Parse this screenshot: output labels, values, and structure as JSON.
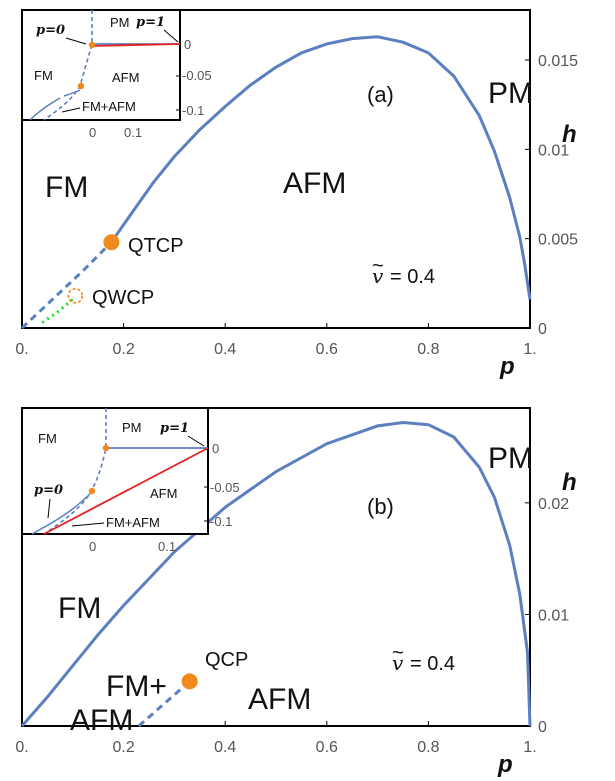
{
  "chart_data": [
    {
      "panel": "(a)",
      "type": "line",
      "xlabel": "p",
      "ylabel": "h",
      "xlim": [
        0,
        1
      ],
      "ylim": [
        0,
        0.0178
      ],
      "x_ticks": [
        "0.",
        "0.2",
        "0.4",
        "0.6",
        "0.8",
        "1."
      ],
      "y_ticks": [
        "0",
        "0.005",
        "0.01",
        "0.015"
      ],
      "regions": [
        "FM",
        "AFM",
        "PM"
      ],
      "parameter_label": "= 0.4",
      "colors": {
        "boundary": "#5b7fbf",
        "point": "#f08a1c",
        "green": "#22dd22"
      },
      "boundary_solid": {
        "x": [
          0.176,
          0.22,
          0.26,
          0.3,
          0.35,
          0.4,
          0.45,
          0.5,
          0.55,
          0.6,
          0.65,
          0.7,
          0.75,
          0.8,
          0.85,
          0.9,
          0.93,
          0.96,
          0.98,
          0.99,
          1.0
        ],
        "y": [
          0.0048,
          0.0066,
          0.0082,
          0.0096,
          0.0111,
          0.0124,
          0.0136,
          0.0146,
          0.0154,
          0.0159,
          0.0162,
          0.0163,
          0.016,
          0.0154,
          0.0141,
          0.0119,
          0.0099,
          0.0073,
          0.0051,
          0.0035,
          0.0016
        ]
      },
      "boundary_dashed": {
        "x": [
          0.0,
          0.06,
          0.12,
          0.176
        ],
        "y": [
          0.0,
          0.0016,
          0.0032,
          0.0048
        ]
      },
      "boundary_dotted_green": {
        "x": [
          0.04,
          0.07,
          0.1
        ],
        "y": [
          0.0003,
          0.0009,
          0.0016
        ]
      },
      "points": [
        {
          "label": "QTCP",
          "x": 0.176,
          "y": 0.0048,
          "filled": true
        },
        {
          "label": "QWCP",
          "x": 0.105,
          "y": 0.0018,
          "filled": false
        }
      ],
      "inset": {
        "x_ticks": [
          "0",
          "0.1"
        ],
        "y_ticks": [
          "0",
          "-0.05",
          "-0.1"
        ],
        "regions": [
          "PM",
          "AFM",
          "FM",
          "FM+AFM"
        ],
        "annotations": [
          "p=0",
          "p=1"
        ]
      }
    },
    {
      "panel": "(b)",
      "type": "line",
      "xlabel": "p",
      "ylabel": "h",
      "xlim": [
        0,
        1
      ],
      "ylim": [
        0,
        0.0285
      ],
      "x_ticks": [
        "0.",
        "0.2",
        "0.4",
        "0.6",
        "0.8",
        "1."
      ],
      "y_ticks": [
        "0",
        "0.01",
        "0.02"
      ],
      "regions": [
        "FM",
        "FM+",
        "AFM",
        "AFM",
        "PM"
      ],
      "parameter_label": "= 0.4",
      "colors": {
        "boundary": "#5b7fbf",
        "point": "#f08a1c"
      },
      "boundary_solid": {
        "x": [
          0.0,
          0.05,
          0.1,
          0.15,
          0.2,
          0.3,
          0.4,
          0.5,
          0.6,
          0.7,
          0.75,
          0.8,
          0.85,
          0.9,
          0.93,
          0.96,
          0.98,
          0.995,
          1.0
        ],
        "y": [
          0.0,
          0.0026,
          0.0054,
          0.0082,
          0.0108,
          0.0156,
          0.0196,
          0.0228,
          0.0253,
          0.0269,
          0.0272,
          0.027,
          0.0259,
          0.0232,
          0.0205,
          0.0162,
          0.0118,
          0.0066,
          0.0
        ]
      },
      "boundary_dashed": {
        "x": [
          0.23,
          0.28,
          0.33
        ],
        "y": [
          0.0,
          0.002,
          0.004
        ]
      },
      "points": [
        {
          "label": "QCP",
          "x": 0.33,
          "y": 0.004,
          "filled": true
        }
      ],
      "inset": {
        "x_ticks": [
          "0",
          "0.1"
        ],
        "y_ticks": [
          "0",
          "-0.05",
          "-0.1"
        ],
        "regions": [
          "FM",
          "PM",
          "AFM",
          "FM+AFM"
        ],
        "annotations": [
          "p=0",
          "p=1"
        ]
      }
    }
  ],
  "figure": {
    "panel_a": {
      "tag": "(a)",
      "xlabel": "p",
      "ylabel": "h",
      "pm": "PM",
      "fm": "FM",
      "afm": "AFM",
      "qtcp": "QTCP",
      "qwcp": "QWCP",
      "param": "= 0.4",
      "vsym": "v",
      "inset": {
        "pm": "PM",
        "afm": "AFM",
        "fm": "FM",
        "fmafm": "FM+AFM",
        "p0": "p=0",
        "p1": "p=1",
        "x0": "0",
        "x1": "0.1",
        "y0": "0",
        "y1": "-0.05",
        "y2": "-0.1"
      }
    },
    "panel_b": {
      "tag": "(b)",
      "xlabel": "p",
      "ylabel": "h",
      "pm": "PM",
      "fm": "FM",
      "fmplus": "FM+",
      "afm_low": "AFM",
      "afm": "AFM",
      "qcp": "QCP",
      "param": "= 0.4",
      "vsym": "v",
      "inset": {
        "pm": "PM",
        "afm": "AFM",
        "fm": "FM",
        "fmafm": "FM+AFM",
        "p0": "p=0",
        "p1": "p=1",
        "x0": "0",
        "x1": "0.1",
        "y0": "0",
        "y1": "-0.05",
        "y2": "-0.1"
      }
    }
  }
}
